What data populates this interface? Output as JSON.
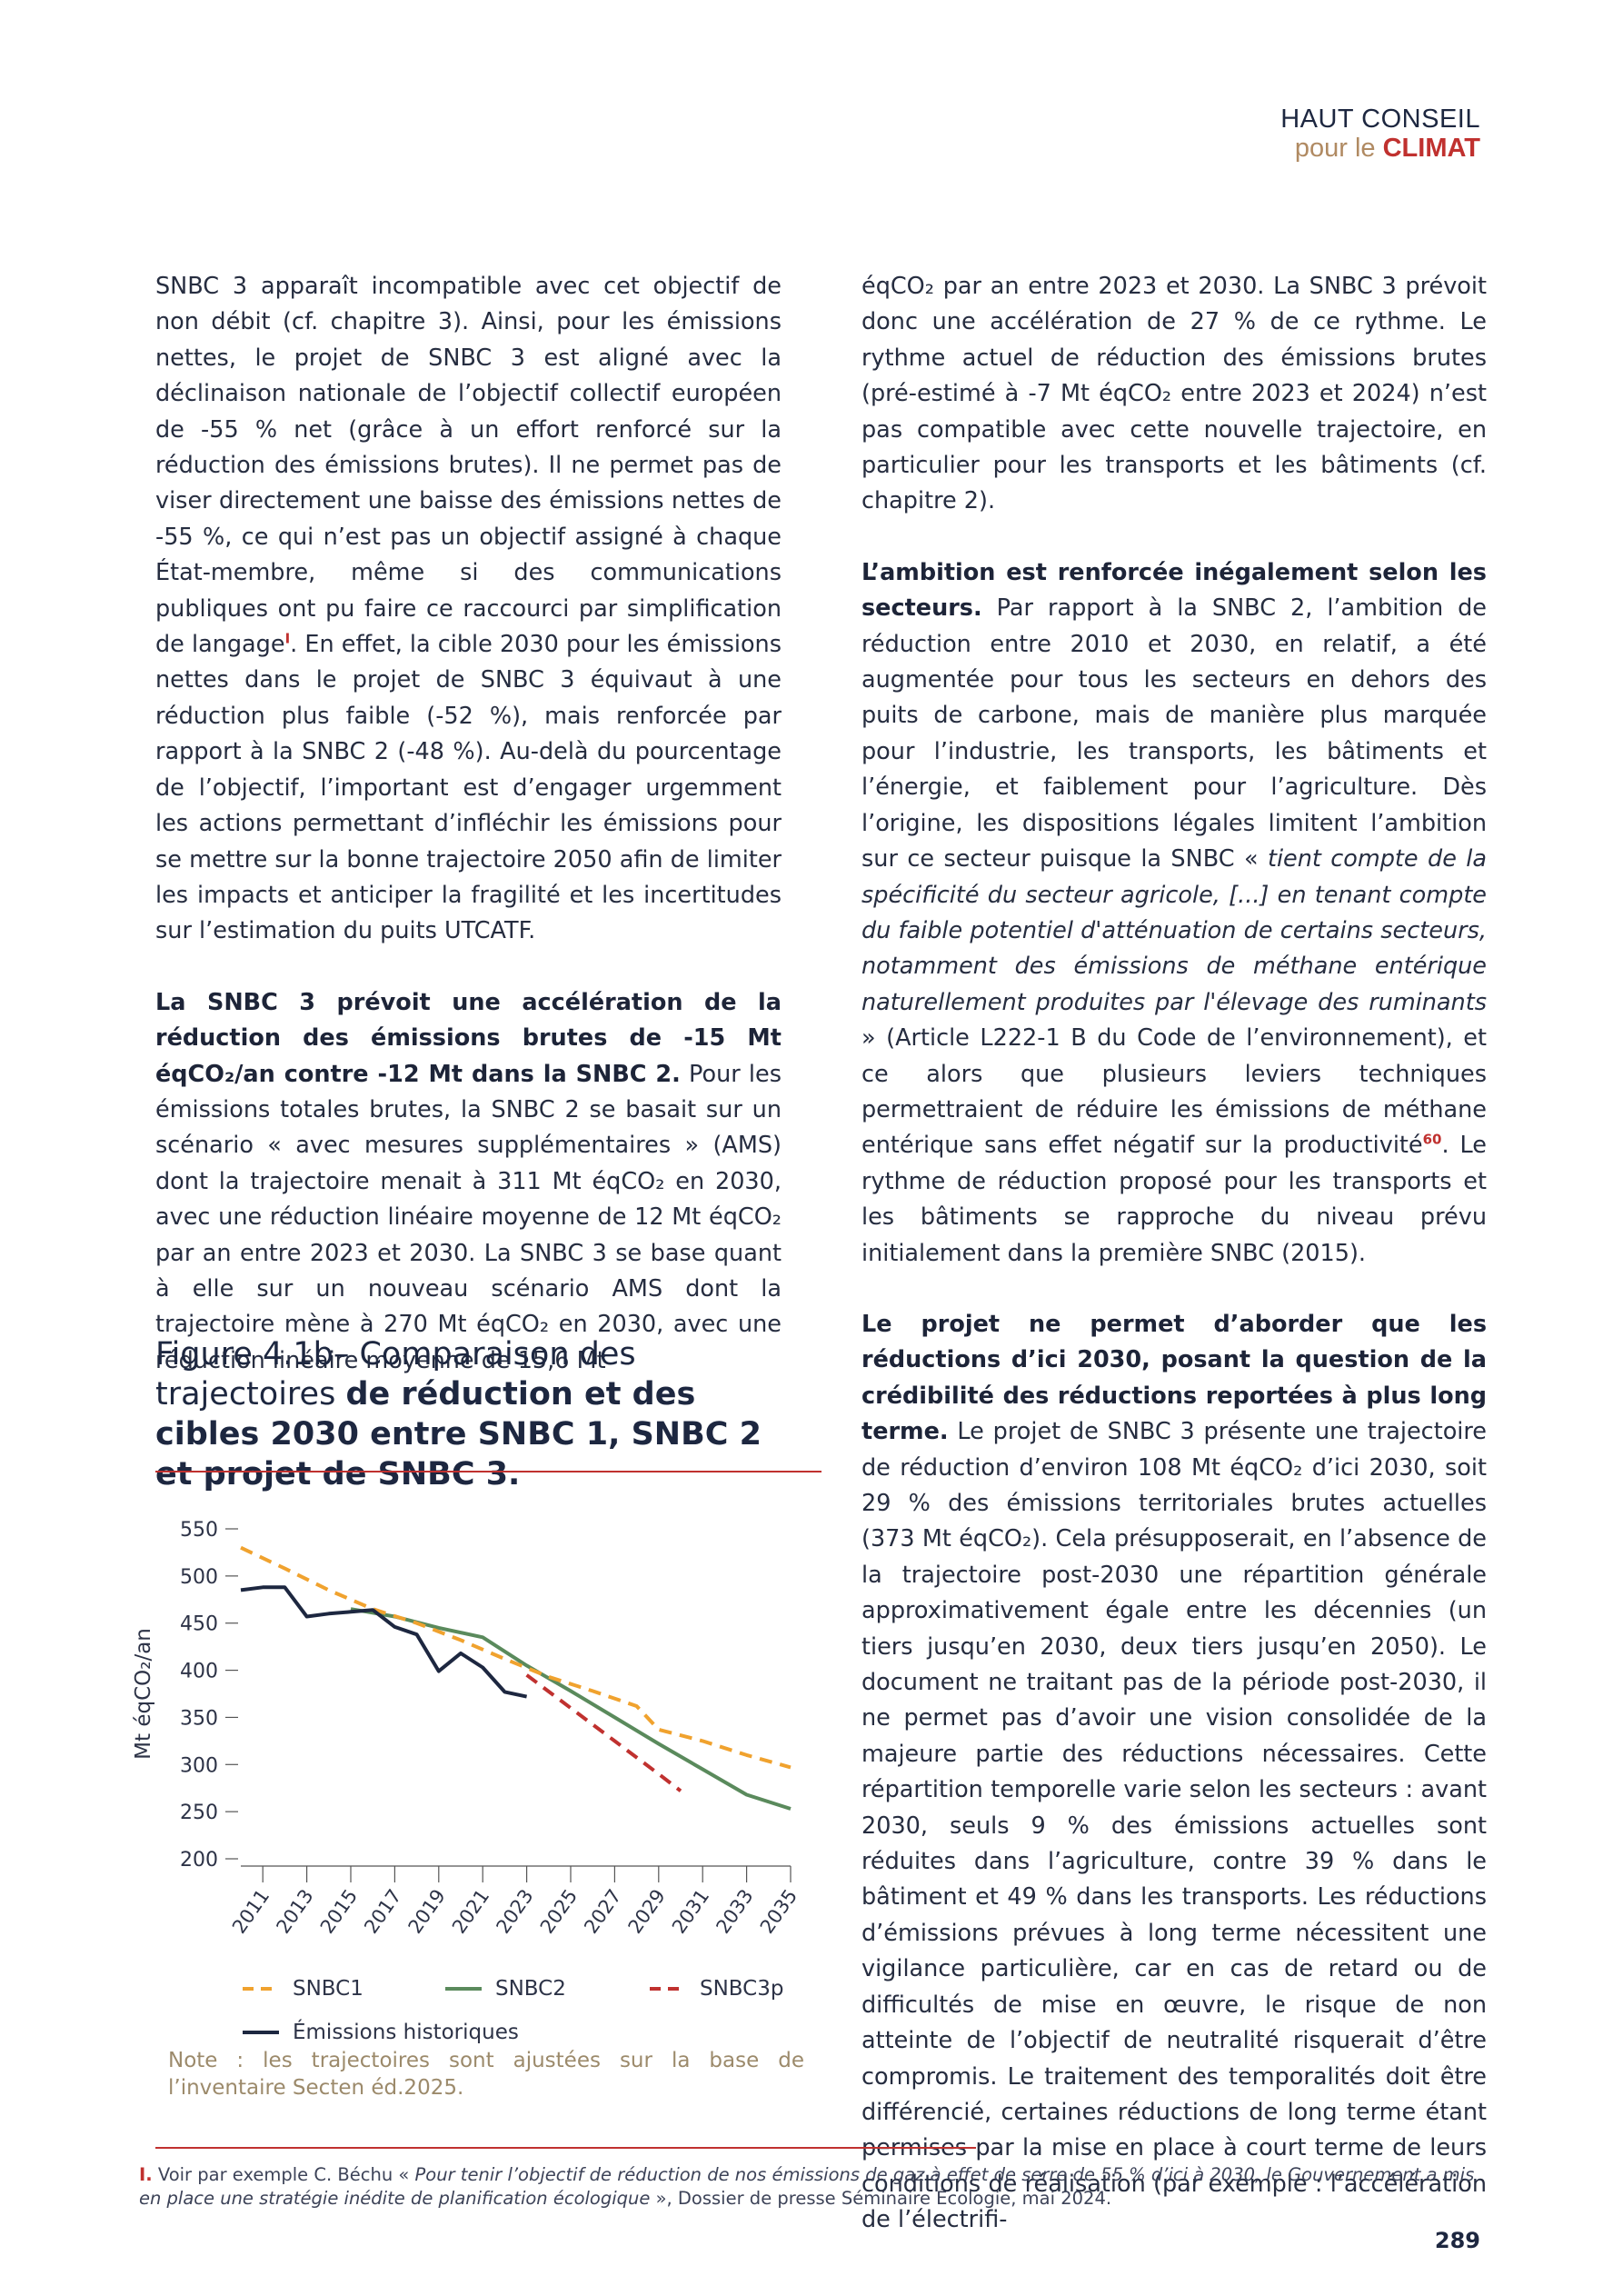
{
  "header": {
    "line1": "HAUT CONSEIL",
    "line2_a": "pour le ",
    "line2_b": "CLIMAT"
  },
  "left": {
    "p1": "SNBC 3 apparaît incompatible avec cet objectif de non débit (cf. chapitre 3). Ainsi, pour les émissions nettes, le projet de SNBC 3 est aligné avec la déclinaison nationale de l’objectif collectif européen de -55 % net (grâce à un effort renforcé sur la réduction des émissions brutes). Il ne permet pas de viser directement une baisse des émissions nettes de -55 %, ce qui n’est pas un objectif assigné à chaque État-membre, même si des communications publiques ont pu faire ce raccourci par simplification de langage",
    "p1_ref": "I",
    "p1_b": ". En effet, la cible 2030 pour les émissions nettes dans le projet de SNBC 3 équivaut à une réduction plus faible (-52 %), mais renforcée par rapport à la SNBC 2 (-48 %). Au-delà du pourcentage de l’objectif, l’important est d’engager urgemment les actions permettant d’infléchir les émissions pour se mettre sur la bonne trajectoire 2050 afin de limiter les impacts et anticiper la fragilité et les incertitudes sur l’estimation du puits UTCATF.",
    "p2_bold": "La SNBC 3 prévoit une accélération de la réduction des émissions brutes de -15 Mt éqCO₂/an contre -12 Mt dans la SNBC 2.",
    "p2": " Pour les émissions totales brutes, la SNBC 2 se basait sur un scénario « avec mesures supplémentaires » (AMS) dont la trajectoire menait à 311 Mt éqCO₂ en 2030, avec une réduction linéaire moyenne de 12 Mt éqCO₂ par an entre 2023 et 2030. La SNBC 3 se base quant à elle sur un nouveau scénario AMS dont la trajectoire mène à 270 Mt éqCO₂ en 2030, avec une réduction linéaire moyenne de 15,6 Mt"
  },
  "right": {
    "p1": "éqCO₂ par an entre 2023 et 2030. La SNBC 3 prévoit donc une accélération de 27 % de ce rythme. Le rythme actuel de réduction des émissions brutes (pré-estimé à -7 Mt éqCO₂ entre 2023 et 2024) n’est pas compatible avec cette nouvelle trajectoire, en particulier pour les transports et les bâtiments (cf. chapitre 2).",
    "p2_bold": "L’ambition est renforcée inégalement selon les secteurs.",
    "p2_a": " Par rapport à la SNBC 2, l’ambition de réduction entre 2010 et 2030, en relatif, a été augmentée pour tous les secteurs en dehors des puits de carbone, mais de manière plus marquée pour l’industrie, les transports, les bâtiments et l’énergie, et faiblement pour l’agriculture. Dès l’origine, les dispositions légales limitent l’ambition sur ce secteur puisque la SNBC « ",
    "p2_italic": "tient compte de la spécificité du secteur agricole, [...] en tenant compte du faible potentiel d'atténuation de certains secteurs, notamment des émissions de méthane entérique naturellement produites par l'élevage des ruminants",
    "p2_b": " » (Article L222-1 B du Code de l’environnement), et ce alors que plusieurs leviers techniques permettraient de réduire les émissions de méthane entérique sans effet négatif sur la productivité",
    "p2_ref": "60",
    "p2_c": ". Le rythme de réduction proposé pour les transports et les bâtiments se rapproche du niveau prévu initialement dans la première SNBC (2015).",
    "p3_bold": "Le projet ne permet d’aborder que les réductions d’ici 2030, posant la question de la crédibilité des réductions reportées à plus long terme.",
    "p3": " Le projet de SNBC 3 présente une trajectoire de réduction d’environ 108 Mt éqCO₂ d’ici 2030, soit 29 % des émissions territoriales brutes actuelles (373 Mt éqCO₂). Cela présupposerait, en l’absence de la trajectoire post-2030 une répartition générale approximativement égale entre les décennies (un tiers jusqu’en 2030, deux tiers jusqu’en 2050). Le document ne traitant pas de la période post-2030, il ne permet pas d’avoir une vision consolidée de la majeure partie des réductions nécessaires. Cette répartition temporelle varie selon les secteurs : avant 2030, seuls 9 % des émissions actuelles sont réduites dans l’agriculture, contre 39 % dans le bâtiment et 49 % dans les transports. Les réductions d’émissions prévues à long terme nécessitent une vigilance particulière, car en cas de retard ou de difficultés de mise en œuvre, le risque de non atteinte de l’objectif de neutralité risquerait d’être compromis. Le traitement des temporalités doit être différencié, certaines réductions de long terme étant permises par la mise en place à court terme de leurs conditions de réalisation (par exemple : l’accélération de l’électrifi-"
  },
  "figure": {
    "title_light": "Figure 4.1b– Comparaison des trajectoires ",
    "title_bold": "de réduction et des cibles 2030 entre SNBC 1, SNBC 2 et projet de SNBC 3.",
    "note": "Note : les trajectoires sont ajustées sur la base de l’inventaire Secten éd.2025."
  },
  "chart_data": {
    "type": "line",
    "title": "",
    "xlabel": "",
    "ylabel": "Mt éqCO₂/an",
    "ylim": [
      200,
      550
    ],
    "xlim": [
      2010,
      2035
    ],
    "yticks": [
      200,
      250,
      300,
      350,
      400,
      450,
      500,
      550
    ],
    "xticks": [
      "2011",
      "2013",
      "2015",
      "2017",
      "2019",
      "2021",
      "2023",
      "2025",
      "2027",
      "2029",
      "2031",
      "2033",
      "2035"
    ],
    "legend_position": "bottom",
    "series": [
      {
        "name": "SNBC1",
        "color": "#f0a22e",
        "dash": "dashed",
        "points": [
          [
            2010,
            530
          ],
          [
            2012,
            508
          ],
          [
            2014,
            485
          ],
          [
            2016,
            465
          ],
          [
            2018,
            450
          ],
          [
            2020,
            432
          ],
          [
            2022,
            412
          ],
          [
            2024,
            393
          ],
          [
            2026,
            378
          ],
          [
            2028,
            362
          ],
          [
            2029,
            337
          ],
          [
            2031,
            325
          ],
          [
            2033,
            310
          ],
          [
            2035,
            297
          ]
        ]
      },
      {
        "name": "SNBC2",
        "color": "#5a8a5c",
        "dash": "solid",
        "points": [
          [
            2015,
            465
          ],
          [
            2017,
            457
          ],
          [
            2019,
            445
          ],
          [
            2021,
            435
          ],
          [
            2023,
            405
          ],
          [
            2025,
            378
          ],
          [
            2027,
            350
          ],
          [
            2029,
            322
          ],
          [
            2031,
            295
          ],
          [
            2033,
            268
          ],
          [
            2035,
            253
          ]
        ]
      },
      {
        "name": "SNBC3p",
        "color": "#c0312f",
        "dash": "dashed",
        "points": [
          [
            2023,
            395
          ],
          [
            2025,
            360
          ],
          [
            2027,
            325
          ],
          [
            2029,
            290
          ],
          [
            2030,
            272
          ]
        ]
      },
      {
        "name": "Émissions historiques",
        "color": "#1d2740",
        "dash": "solid",
        "points": [
          [
            2010,
            485
          ],
          [
            2011,
            488
          ],
          [
            2012,
            488
          ],
          [
            2013,
            457
          ],
          [
            2014,
            460
          ],
          [
            2015,
            462
          ],
          [
            2016,
            464
          ],
          [
            2017,
            446
          ],
          [
            2018,
            438
          ],
          [
            2019,
            399
          ],
          [
            2020,
            418
          ],
          [
            2021,
            403
          ],
          [
            2022,
            377
          ],
          [
            2023,
            372
          ]
        ]
      }
    ]
  },
  "footnote": {
    "mark": "I.",
    "text_a": " Voir par exemple C. Béchu « ",
    "text_italic": "Pour tenir l’objectif de réduction de nos émissions de gaz à effet de serre de 55 % d’ici à 2030, le Gouvernement a mis en place une stratégie inédite de planification écologique",
    "text_b": " », Dossier de presse Séminaire Écologie, mai 2024."
  },
  "page_number": "289"
}
